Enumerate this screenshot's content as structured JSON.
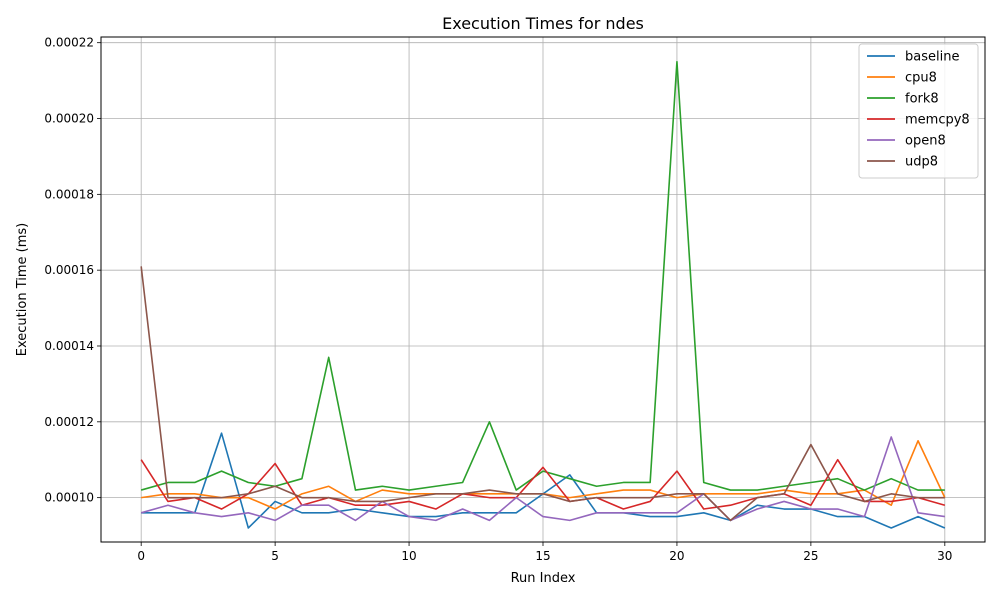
{
  "chart_data": {
    "type": "line",
    "title": "Execution Times for ndes",
    "xlabel": "Run Index",
    "ylabel": "Execution Time (ms)",
    "xlim": [
      -1.5,
      31.5
    ],
    "ylim": [
      8.83e-05,
      0.0002215
    ],
    "xticks": [
      0,
      5,
      10,
      15,
      20,
      25,
      30
    ],
    "yticks": [
      0.0001,
      0.00012,
      0.00014,
      0.00016,
      0.00018,
      0.0002,
      0.00022
    ],
    "ytick_labels": [
      "0.00010",
      "0.00012",
      "0.00014",
      "0.00016",
      "0.00018",
      "0.00020",
      "0.00022"
    ],
    "grid": true,
    "legend_position": "top-right",
    "x": [
      0,
      1,
      2,
      3,
      4,
      5,
      6,
      7,
      8,
      9,
      10,
      11,
      12,
      13,
      14,
      15,
      16,
      17,
      18,
      19,
      20,
      21,
      22,
      23,
      24,
      25,
      26,
      27,
      28,
      29,
      30
    ],
    "series": [
      {
        "name": "baseline",
        "color": "#1f77b4",
        "values": [
          9.6e-05,
          9.6e-05,
          9.6e-05,
          0.000117,
          9.2e-05,
          9.9e-05,
          9.6e-05,
          9.6e-05,
          9.7e-05,
          9.6e-05,
          9.5e-05,
          9.5e-05,
          9.6e-05,
          9.6e-05,
          9.6e-05,
          0.000101,
          0.000106,
          9.6e-05,
          9.6e-05,
          9.5e-05,
          9.5e-05,
          9.6e-05,
          9.4e-05,
          9.8e-05,
          9.7e-05,
          9.7e-05,
          9.5e-05,
          9.5e-05,
          9.2e-05,
          9.5e-05,
          9.2e-05
        ]
      },
      {
        "name": "cpu8",
        "color": "#ff7f0e",
        "values": [
          0.0001,
          0.000101,
          0.000101,
          0.0001,
          0.0001,
          9.7e-05,
          0.000101,
          0.000103,
          9.9e-05,
          0.000102,
          0.000101,
          0.000101,
          0.000101,
          0.000101,
          0.000101,
          0.000101,
          0.0001,
          0.000101,
          0.000102,
          0.000102,
          0.0001,
          0.000101,
          0.000101,
          0.000101,
          0.000102,
          0.000101,
          0.000101,
          0.000102,
          9.8e-05,
          0.000115,
          0.0001
        ]
      },
      {
        "name": "fork8",
        "color": "#2ca02c",
        "values": [
          0.000102,
          0.000104,
          0.000104,
          0.000107,
          0.000104,
          0.000103,
          0.000105,
          0.000137,
          0.000102,
          0.000103,
          0.000102,
          0.000103,
          0.000104,
          0.00012,
          0.000102,
          0.000107,
          0.000105,
          0.000103,
          0.000104,
          0.000104,
          0.000215,
          0.000104,
          0.000102,
          0.000102,
          0.000103,
          0.000104,
          0.000105,
          0.000102,
          0.000105,
          0.000102,
          0.000102
        ]
      },
      {
        "name": "memcpy8",
        "color": "#d62728",
        "values": [
          0.00011,
          9.9e-05,
          0.0001,
          9.7e-05,
          0.000101,
          0.000109,
          9.8e-05,
          0.0001,
          9.8e-05,
          9.8e-05,
          9.9e-05,
          9.7e-05,
          0.000101,
          0.0001,
          0.0001,
          0.000108,
          9.9e-05,
          0.0001,
          9.7e-05,
          9.9e-05,
          0.000107,
          9.7e-05,
          9.8e-05,
          0.0001,
          0.000101,
          9.8e-05,
          0.00011,
          9.9e-05,
          9.9e-05,
          0.0001,
          9.8e-05
        ]
      },
      {
        "name": "open8",
        "color": "#9467bd",
        "values": [
          9.6e-05,
          9.8e-05,
          9.6e-05,
          9.5e-05,
          9.6e-05,
          9.4e-05,
          9.8e-05,
          9.8e-05,
          9.4e-05,
          9.9e-05,
          9.5e-05,
          9.4e-05,
          9.7e-05,
          9.4e-05,
          0.0001,
          9.5e-05,
          9.4e-05,
          9.6e-05,
          9.6e-05,
          9.6e-05,
          9.6e-05,
          0.000101,
          9.4e-05,
          9.7e-05,
          9.9e-05,
          9.7e-05,
          9.7e-05,
          9.5e-05,
          0.000116,
          9.6e-05,
          9.5e-05
        ]
      },
      {
        "name": "udp8",
        "color": "#8c564b",
        "values": [
          0.000161,
          0.0001,
          0.0001,
          0.0001,
          0.000101,
          0.000103,
          0.0001,
          0.0001,
          9.9e-05,
          9.9e-05,
          0.0001,
          0.000101,
          0.000101,
          0.000102,
          0.000101,
          0.000101,
          9.9e-05,
          0.0001,
          0.0001,
          0.0001,
          0.000101,
          0.000101,
          9.4e-05,
          0.0001,
          0.000101,
          0.000114,
          0.000101,
          9.9e-05,
          0.000101,
          0.0001,
          0.0001
        ]
      }
    ]
  }
}
